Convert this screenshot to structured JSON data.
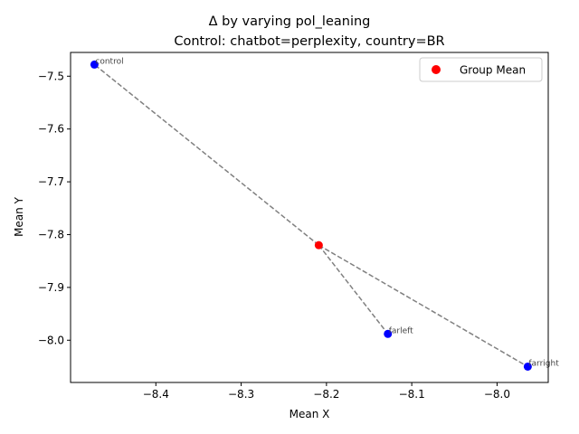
{
  "chart_data": {
    "type": "scatter",
    "title": "Δ by varying pol_leaning",
    "subtitle": "Control: chatbot=perplexity, country=BR",
    "xlabel": "Mean X",
    "ylabel": "Mean Y",
    "xlim": [
      -8.5,
      -7.94
    ],
    "ylim": [
      -8.08,
      -7.455
    ],
    "xticks": [
      -8.4,
      -8.3,
      -8.2,
      -8.1,
      -8.0
    ],
    "xtick_labels": [
      "−8.4",
      "−8.3",
      "−8.2",
      "−8.1",
      "−8.0"
    ],
    "yticks": [
      -7.5,
      -7.6,
      -7.7,
      -7.8,
      -7.9,
      -8.0
    ],
    "ytick_labels": [
      "−7.5",
      "−7.6",
      "−7.7",
      "−7.8",
      "−7.9",
      "−8.0"
    ],
    "grid": false,
    "legend_position": "top-right",
    "legend": [
      {
        "label": "Group Mean",
        "color": "#ff0000"
      }
    ],
    "points": [
      {
        "label": "control",
        "x": -8.472,
        "y": -7.478,
        "color": "#0000ff"
      },
      {
        "label": "farleft",
        "x": -8.128,
        "y": -7.988,
        "color": "#0000ff"
      },
      {
        "label": "farright",
        "x": -7.964,
        "y": -8.05,
        "color": "#0000ff"
      }
    ],
    "group_mean": {
      "x": -8.209,
      "y": -7.82,
      "color": "#ff0000"
    },
    "connector_color": "#808080"
  }
}
